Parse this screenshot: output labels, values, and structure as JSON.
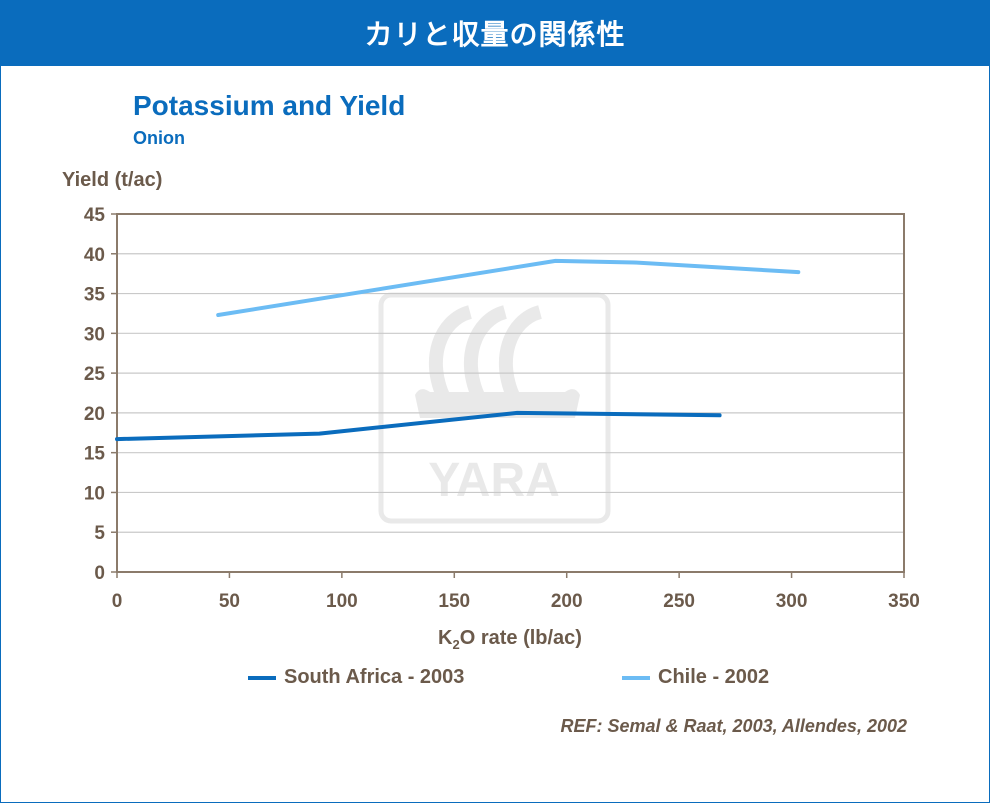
{
  "header": {
    "title": "カリと収量の関係性"
  },
  "chart_data": {
    "type": "line",
    "title": "Potassium and Yield",
    "subtitle": "Onion",
    "ylabel": "Yield (t/ac)",
    "xlabel_main": "K",
    "xlabel_sub": "2",
    "xlabel_rest": "O rate (lb/ac)",
    "xlim": [
      0,
      350
    ],
    "ylim": [
      0,
      45
    ],
    "xticks": [
      0,
      50,
      100,
      150,
      200,
      250,
      300,
      350
    ],
    "yticks": [
      0,
      5,
      10,
      15,
      20,
      25,
      30,
      35,
      40,
      45
    ],
    "grid": true,
    "legend_position": "bottom",
    "series": [
      {
        "name": "South Africa - 2003",
        "color": "#0a6cbd",
        "x": [
          0,
          90,
          178,
          268
        ],
        "y": [
          16.7,
          17.4,
          20.0,
          19.7
        ]
      },
      {
        "name": "Chile - 2002",
        "color": "#6cbcf4",
        "x": [
          45,
          195,
          230,
          303
        ],
        "y": [
          32.3,
          39.1,
          38.9,
          37.7
        ]
      }
    ]
  },
  "watermark": {
    "text": "YARA"
  },
  "reference": "REF: Semal & Raat, 2003, Allendes, 2002"
}
